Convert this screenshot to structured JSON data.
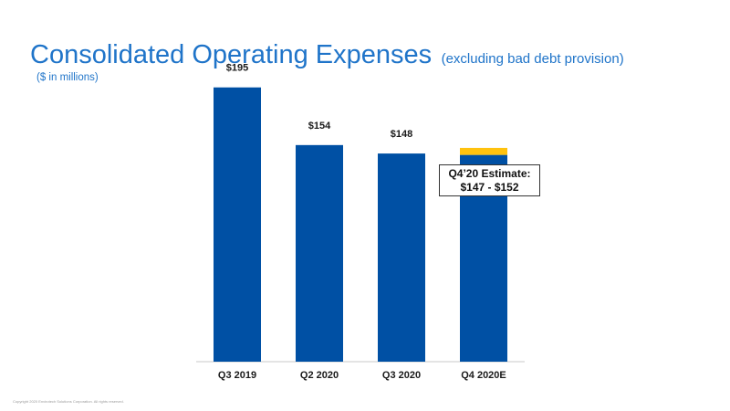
{
  "header": {
    "title": "Consolidated Operating Expenses",
    "subtitle": "(excluding bad debt provision)",
    "units": "($ in millions)"
  },
  "chart_data": {
    "type": "bar",
    "categories": [
      "Q3 2019",
      "Q2 2020",
      "Q3 2020",
      "Q4 2020E"
    ],
    "values": [
      195,
      154,
      148,
      147
    ],
    "data_labels": [
      "$195",
      "$154",
      "$148",
      ""
    ],
    "estimate_range": {
      "category": "Q4 2020E",
      "low": 147,
      "high": 152
    },
    "ylim": [
      0,
      200
    ],
    "grid": false,
    "colors": {
      "bar": "#0050a4",
      "estimate": "#ffc20e",
      "axis": "#c8c8c8"
    }
  },
  "callout": {
    "line1": "Q4’20 Estimate:",
    "line2": "$147 - $152"
  },
  "footer": {
    "copyright": "Copyright 2020 Envirotech Solutions Corporation. All rights reserved."
  }
}
